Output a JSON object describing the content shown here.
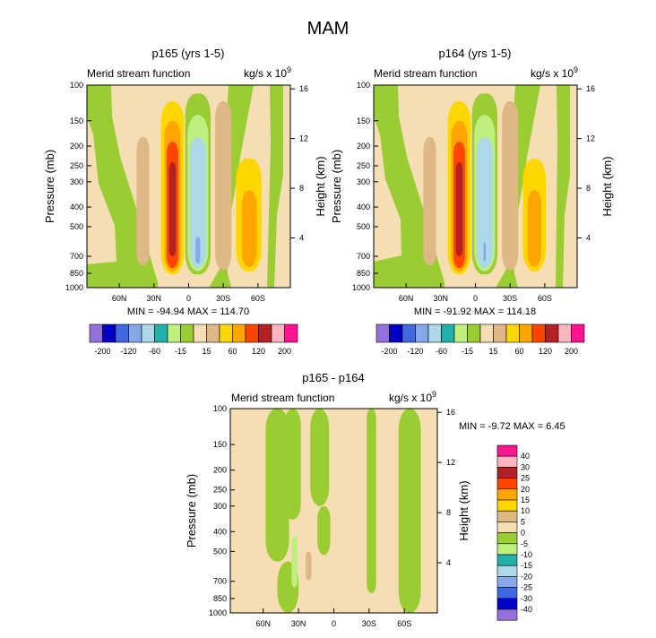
{
  "figure": {
    "title": "MAM",
    "axis_label": "Pressure (mb)",
    "right_axis_label": "Height (km)",
    "field_label": "Merid stream function",
    "units_prefix": "kg/s x 10",
    "units_exponent": "9"
  },
  "colors": {
    "top_palette": [
      "#9370db",
      "#0000cd",
      "#4169e1",
      "#87a8e8",
      "#add8e6",
      "#20b2aa",
      "#bfef7f",
      "#9acd32",
      "#f5deb3",
      "#deb887",
      "#ffd700",
      "#ffa500",
      "#ff4500",
      "#b22222",
      "#ffb6c1",
      "#ff1493"
    ],
    "diff_palette": [
      "#9370db",
      "#0000cd",
      "#4169e1",
      "#87a8e8",
      "#add8e6",
      "#20b2aa",
      "#bfef7f",
      "#9acd32",
      "#f5deb3",
      "#deb887",
      "#ffd700",
      "#ffa500",
      "#ff4500",
      "#b22222",
      "#ffb6c1",
      "#ff1493"
    ],
    "grid_line": "#000000"
  },
  "chart_data": [
    {
      "type": "heatmap",
      "title": "p165 (yrs 1-5)",
      "xlabel": "",
      "ylabel": "Pressure (mb)",
      "y2label": "Height (km)",
      "x_ticks": [
        "60N",
        "30N",
        "0",
        "30S",
        "60S"
      ],
      "x_tick_lats": [
        60,
        30,
        0,
        -30,
        -60
      ],
      "y_ticks": [
        100,
        150,
        200,
        250,
        300,
        400,
        500,
        700,
        850,
        1000
      ],
      "y2_ticks": [
        16,
        12,
        8,
        4
      ],
      "min": -94.94,
      "max": 114.7,
      "stats_text": "MIN = -94.94   MAX = 114.70",
      "contour_levels": [
        -200,
        -160,
        -120,
        -80,
        -60,
        -40,
        -15,
        -5,
        5,
        15,
        40,
        60,
        80,
        120,
        160,
        200
      ],
      "colorbar_labels": [
        "-200",
        "-120",
        "-60",
        "-15",
        "15",
        "60",
        "120",
        "200"
      ],
      "cells": [
        {
          "lat_from": 45,
          "lat_to": 34,
          "p_top": 180,
          "p_bot": 780,
          "value": 10
        },
        {
          "lat_from": 24,
          "lat_to": 4,
          "p_top": 120,
          "p_bot": 860,
          "value": 20
        },
        {
          "lat_from": 21,
          "lat_to": 7,
          "p_top": 150,
          "p_bot": 830,
          "value": 50
        },
        {
          "lat_from": 19,
          "lat_to": 9,
          "p_top": 190,
          "p_bot": 800,
          "value": 70
        },
        {
          "lat_from": 17,
          "lat_to": 11,
          "p_top": 240,
          "p_bot": 700,
          "value": 100
        },
        {
          "lat_from": 3,
          "lat_to": -19,
          "p_top": 110,
          "p_bot": 860,
          "value": -10
        },
        {
          "lat_from": 1,
          "lat_to": -17,
          "p_top": 140,
          "p_bot": 830,
          "value": -40
        },
        {
          "lat_from": -1,
          "lat_to": -15,
          "p_top": 180,
          "p_bot": 800,
          "value": -70
        },
        {
          "lat_from": -6,
          "lat_to": -10,
          "p_top": 560,
          "p_bot": 760,
          "value": -90
        },
        {
          "lat_from": -23,
          "lat_to": -37,
          "p_top": 120,
          "p_bot": 820,
          "value": 10
        },
        {
          "lat_from": -41,
          "lat_to": -63,
          "p_top": 230,
          "p_bot": 830,
          "value": 20
        },
        {
          "lat_from": -46,
          "lat_to": -59,
          "p_top": 330,
          "p_bot": 790,
          "value": 50
        }
      ]
    },
    {
      "type": "heatmap",
      "title": "p164 (yrs 1-5)",
      "xlabel": "",
      "ylabel": "Pressure (mb)",
      "y2label": "Height (km)",
      "x_ticks": [
        "60N",
        "30N",
        "0",
        "30S",
        "60S"
      ],
      "x_tick_lats": [
        60,
        30,
        0,
        -30,
        -60
      ],
      "y_ticks": [
        100,
        150,
        200,
        250,
        300,
        400,
        500,
        700,
        850,
        1000
      ],
      "y2_ticks": [
        16,
        12,
        8,
        4
      ],
      "min": -91.92,
      "max": 114.18,
      "stats_text": "MIN = -91.92   MAX = 114.18",
      "contour_levels": [
        -200,
        -160,
        -120,
        -80,
        -60,
        -40,
        -15,
        -5,
        5,
        15,
        40,
        60,
        80,
        120,
        160,
        200
      ],
      "colorbar_labels": [
        "-200",
        "-120",
        "-60",
        "-15",
        "15",
        "60",
        "120",
        "200"
      ],
      "cells": [
        {
          "lat_from": 45,
          "lat_to": 34,
          "p_top": 180,
          "p_bot": 780,
          "value": 10
        },
        {
          "lat_from": 24,
          "lat_to": 4,
          "p_top": 120,
          "p_bot": 860,
          "value": 20
        },
        {
          "lat_from": 21,
          "lat_to": 7,
          "p_top": 150,
          "p_bot": 830,
          "value": 50
        },
        {
          "lat_from": 19,
          "lat_to": 9,
          "p_top": 190,
          "p_bot": 800,
          "value": 70
        },
        {
          "lat_from": 17,
          "lat_to": 11,
          "p_top": 240,
          "p_bot": 700,
          "value": 100
        },
        {
          "lat_from": 3,
          "lat_to": -19,
          "p_top": 110,
          "p_bot": 860,
          "value": -10
        },
        {
          "lat_from": 1,
          "lat_to": -17,
          "p_top": 140,
          "p_bot": 830,
          "value": -40
        },
        {
          "lat_from": -1,
          "lat_to": -15,
          "p_top": 180,
          "p_bot": 800,
          "value": -70
        },
        {
          "lat_from": -7,
          "lat_to": -9,
          "p_top": 600,
          "p_bot": 740,
          "value": -90
        },
        {
          "lat_from": -23,
          "lat_to": -37,
          "p_top": 120,
          "p_bot": 820,
          "value": 10
        },
        {
          "lat_from": -41,
          "lat_to": -61,
          "p_top": 230,
          "p_bot": 830,
          "value": 20
        },
        {
          "lat_from": -45,
          "lat_to": -57,
          "p_top": 330,
          "p_bot": 790,
          "value": 50
        }
      ]
    },
    {
      "type": "heatmap",
      "title": "p165 - p164",
      "xlabel": "",
      "ylabel": "Pressure (mb)",
      "y2label": "Height (km)",
      "x_ticks": [
        "60N",
        "30N",
        "0",
        "30S",
        "60S"
      ],
      "x_tick_lats": [
        60,
        30,
        0,
        -30,
        -60
      ],
      "y_ticks": [
        100,
        150,
        200,
        250,
        300,
        400,
        500,
        700,
        850,
        1000
      ],
      "y2_ticks": [
        16,
        12,
        8,
        4
      ],
      "min": -9.72,
      "max": 6.45,
      "stats_text": "MIN =  -9.72   MAX =   6.45",
      "contour_levels": [
        -40,
        -30,
        -25,
        -20,
        -15,
        -10,
        -5,
        0,
        5,
        10,
        15,
        20,
        25,
        30,
        40
      ],
      "colorbar_labels": [
        "40",
        "30",
        "25",
        "20",
        "15",
        "10",
        "5",
        "0",
        "-5",
        "-10",
        "-15",
        "-20",
        "-25",
        "-30",
        "-40"
      ],
      "cells": [
        {
          "lat_from": 58,
          "lat_to": 38,
          "p_top": 100,
          "p_bot": 560,
          "value": -2
        },
        {
          "lat_from": 48,
          "lat_to": 30,
          "p_top": 560,
          "p_bot": 1000,
          "value": -2
        },
        {
          "lat_from": 42,
          "lat_to": 28,
          "p_top": 100,
          "p_bot": 350,
          "value": -2
        },
        {
          "lat_from": 36,
          "lat_to": 31,
          "p_top": 420,
          "p_bot": 750,
          "value": -7
        },
        {
          "lat_from": 29,
          "lat_to": 20,
          "p_top": 460,
          "p_bot": 720,
          "value": 2
        },
        {
          "lat_from": 24,
          "lat_to": 19,
          "p_top": 500,
          "p_bot": 690,
          "value": 6
        },
        {
          "lat_from": 20,
          "lat_to": 4,
          "p_top": 100,
          "p_bot": 300,
          "value": -2
        },
        {
          "lat_from": 14,
          "lat_to": 3,
          "p_top": 300,
          "p_bot": 520,
          "value": -2
        },
        {
          "lat_from": -28,
          "lat_to": -36,
          "p_top": 100,
          "p_bot": 800,
          "value": -2
        },
        {
          "lat_from": -55,
          "lat_to": -74,
          "p_top": 100,
          "p_bot": 1000,
          "value": -2
        }
      ]
    }
  ]
}
